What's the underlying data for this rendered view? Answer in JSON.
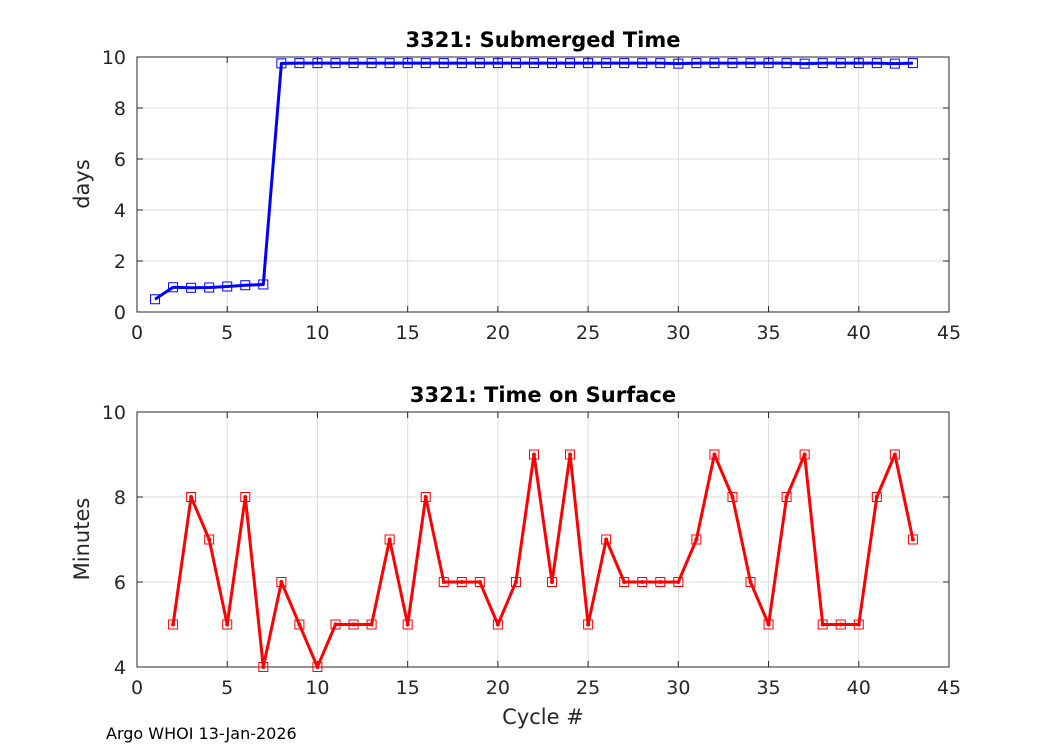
{
  "footer": "Argo WHOI 13-Jan-2026",
  "chart_data": [
    {
      "type": "line",
      "title": "3321: Submerged Time",
      "xlabel": "",
      "ylabel": "days",
      "xlim": [
        0,
        45
      ],
      "ylim": [
        0,
        10
      ],
      "xticks": [
        "0",
        "5",
        "10",
        "15",
        "20",
        "25",
        "30",
        "35",
        "40",
        "45"
      ],
      "yticks": [
        "0",
        "2",
        "4",
        "6",
        "8",
        "10"
      ],
      "grid": true,
      "color": "#0000ff",
      "marker": "square",
      "x": [
        1,
        2,
        3,
        4,
        5,
        6,
        7,
        8,
        9,
        10,
        11,
        12,
        13,
        14,
        15,
        16,
        17,
        18,
        19,
        20,
        21,
        22,
        23,
        24,
        25,
        26,
        27,
        28,
        29,
        30,
        31,
        32,
        33,
        34,
        35,
        36,
        37,
        38,
        39,
        40,
        41,
        42,
        43
      ],
      "y": [
        0.5,
        0.97,
        0.95,
        0.96,
        1.0,
        1.05,
        1.08,
        9.75,
        9.76,
        9.76,
        9.76,
        9.76,
        9.76,
        9.76,
        9.76,
        9.76,
        9.76,
        9.76,
        9.76,
        9.76,
        9.76,
        9.76,
        9.76,
        9.76,
        9.76,
        9.76,
        9.76,
        9.76,
        9.76,
        9.74,
        9.76,
        9.76,
        9.76,
        9.76,
        9.76,
        9.76,
        9.74,
        9.76,
        9.76,
        9.76,
        9.76,
        9.74,
        9.76
      ]
    },
    {
      "type": "line",
      "title": "3321: Time on Surface",
      "xlabel": "Cycle #",
      "ylabel": "Minutes",
      "xlim": [
        0,
        45
      ],
      "ylim": [
        4,
        10
      ],
      "xticks": [
        "0",
        "5",
        "10",
        "15",
        "20",
        "25",
        "30",
        "35",
        "40",
        "45"
      ],
      "yticks": [
        "4",
        "6",
        "8",
        "10"
      ],
      "grid": true,
      "color": "#ff0000",
      "marker": "square",
      "x": [
        2,
        3,
        4,
        5,
        6,
        7,
        8,
        9,
        10,
        11,
        12,
        13,
        14,
        15,
        16,
        17,
        18,
        19,
        20,
        21,
        22,
        23,
        24,
        25,
        26,
        27,
        28,
        29,
        30,
        31,
        32,
        33,
        34,
        35,
        36,
        37,
        38,
        39,
        40,
        41,
        42,
        43
      ],
      "y": [
        5,
        8,
        7,
        5,
        8,
        4,
        6,
        5,
        4,
        5,
        5,
        5,
        7,
        5,
        8,
        6,
        6,
        6,
        5,
        6,
        9,
        6,
        9,
        5,
        7,
        6,
        6,
        6,
        6,
        7,
        9,
        8,
        6,
        5,
        8,
        9,
        5,
        5,
        5,
        8,
        9,
        7
      ]
    }
  ]
}
